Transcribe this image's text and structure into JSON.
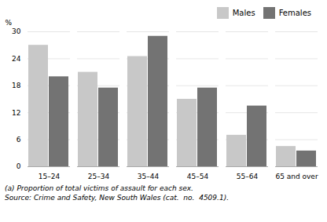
{
  "chart_data": {
    "type": "bar",
    "categories": [
      "15–24",
      "25–34",
      "35–44",
      "45–54",
      "55–64",
      "65 and over"
    ],
    "series": [
      {
        "name": "Males",
        "color": "#c8c8c8",
        "values": [
          27.0,
          21.0,
          24.5,
          15.0,
          7.0,
          4.5
        ]
      },
      {
        "name": "Females",
        "color": "#737373",
        "values": [
          20.0,
          17.5,
          29.0,
          17.5,
          13.5,
          3.5
        ]
      }
    ],
    "ylabel": "%",
    "ylim": [
      0,
      30
    ],
    "yticks": [
      0,
      6,
      12,
      18,
      24,
      30
    ],
    "grid": true,
    "legend": "top-right",
    "annotations": [
      "(a) Proportion of total victims of assault for each sex.",
      "Source: Crime and Safety, New South Wales (cat.  no.  4509.1)."
    ]
  }
}
